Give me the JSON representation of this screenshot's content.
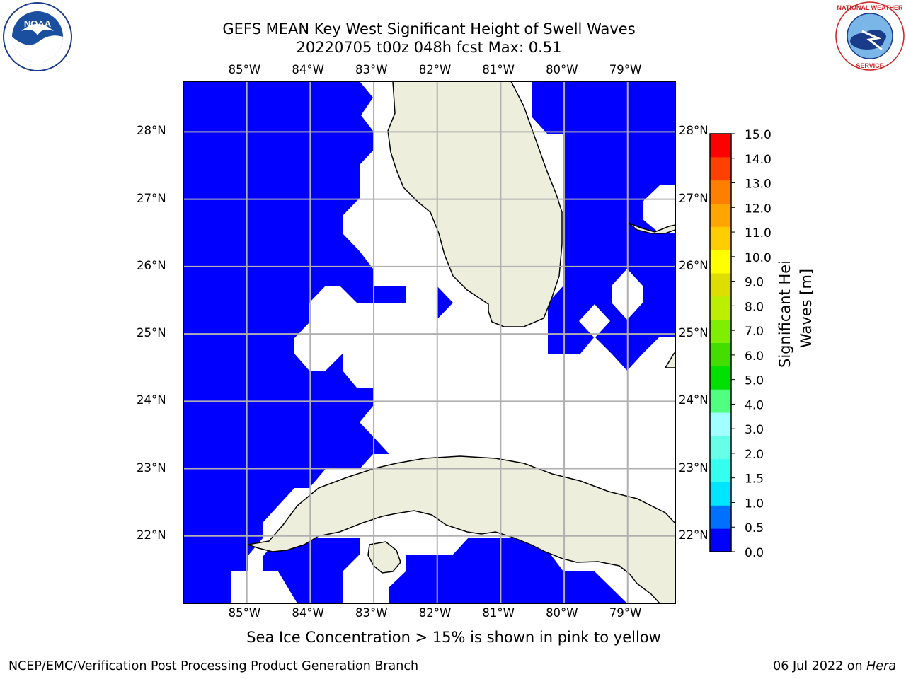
{
  "title_line1": "GEFS MEAN Key West Significant Height of Swell Waves",
  "title_line2": "20220705 t00z 048h fcst   Max: 0.51",
  "lon_ticks": [
    "85°W",
    "84°W",
    "83°W",
    "82°W",
    "81°W",
    "80°W",
    "79°W"
  ],
  "lat_ticks": [
    "28°N",
    "27°N",
    "26°N",
    "25°N",
    "24°N",
    "23°N",
    "22°N"
  ],
  "map_extent": {
    "lon_min": -86.0,
    "lon_max": -78.25,
    "lat_min": 21.0,
    "lat_max": 28.75
  },
  "colorbar": {
    "label_line1": "Significant Height of Swell",
    "label_line2": "Waves [m]",
    "ticks": [
      "0.0",
      "0.5",
      "1.0",
      "1.5",
      "2.0",
      "3.0",
      "4.0",
      "5.0",
      "6.0",
      "7.0",
      "8.0",
      "9.0",
      "10.0",
      "11.0",
      "12.0",
      "13.0",
      "14.0",
      "15.0"
    ],
    "colors": [
      "#0000ff",
      "#0070ff",
      "#00e5ff",
      "#35ffee",
      "#66ffe8",
      "#a0ffff",
      "#50ff80",
      "#00e000",
      "#44dd00",
      "#80ee00",
      "#bbee00",
      "#dddd00",
      "#ffff00",
      "#ffcc00",
      "#ffa500",
      "#ff8000",
      "#ff4000",
      "#ff0000"
    ]
  },
  "field_color": "#0000ff",
  "land_color": "#eeeedd",
  "note": "Sea Ice Concentration > 15% is shown in pink to yellow",
  "footer_left": "NCEP/EMC/Verification Post Processing Product Generation Branch",
  "footer_date": "06 Jul 2022 on ",
  "footer_machine": "Hera",
  "logos": {
    "left": "NOAA",
    "right": "NATIONAL WEATHER SERVICE"
  }
}
